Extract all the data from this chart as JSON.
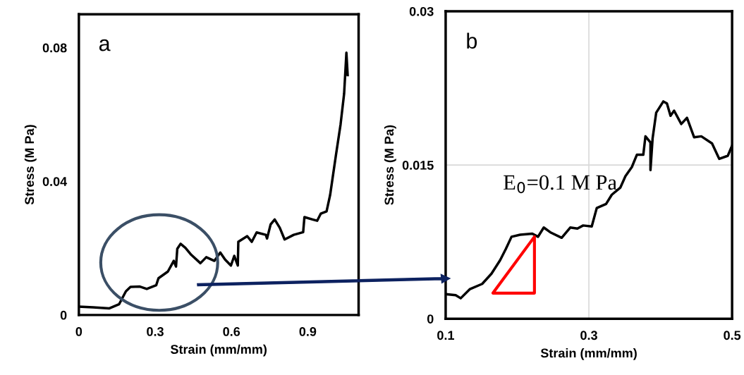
{
  "chart_data": [
    {
      "type": "line",
      "xlabel": "Strain (mm/mm)",
      "ylabel": "Stress (M Pa)",
      "annotations": [
        "a"
      ],
      "xlim": [
        0,
        1.1
      ],
      "ylim": [
        0,
        0.09
      ],
      "xticks": [
        0,
        0.3,
        0.6,
        0.9
      ],
      "yticks": [
        0,
        0.04,
        0.08
      ],
      "grid": false,
      "legend": false,
      "series": [
        {
          "color": "#000000",
          "x": [
            0,
            0.056,
            0.12,
            0.158,
            0.185,
            0.203,
            0.24,
            0.267,
            0.304,
            0.313,
            0.35,
            0.373,
            0.382,
            0.387,
            0.4,
            0.419,
            0.442,
            0.478,
            0.501,
            0.533,
            0.556,
            0.575,
            0.598,
            0.611,
            0.625,
            0.627,
            0.662,
            0.68,
            0.699,
            0.735,
            0.74,
            0.754,
            0.77,
            0.79,
            0.809,
            0.845,
            0.882,
            0.887,
            0.919,
            0.937,
            0.951,
            0.974,
            0.988,
            1.011,
            1.029,
            1.043,
            1.052,
            1.057
          ],
          "values": [
            0.0025,
            0.0023,
            0.002,
            0.0032,
            0.0071,
            0.0084,
            0.0085,
            0.0078,
            0.0089,
            0.011,
            0.013,
            0.0162,
            0.0145,
            0.0198,
            0.0213,
            0.0201,
            0.018,
            0.0155,
            0.0173,
            0.0162,
            0.0187,
            0.0166,
            0.0148,
            0.0177,
            0.0148,
            0.0219,
            0.0236,
            0.0219,
            0.0247,
            0.024,
            0.0229,
            0.0271,
            0.0286,
            0.0261,
            0.0226,
            0.024,
            0.0248,
            0.0293,
            0.0286,
            0.0282,
            0.0303,
            0.031,
            0.0359,
            0.0479,
            0.057,
            0.0662,
            0.0785,
            0.0718
          ]
        }
      ]
    },
    {
      "type": "line",
      "xlabel": "Strain (mm/mm)",
      "ylabel": "Stress (M Pa)",
      "annotations": [
        "b",
        "E$_{0}$=0.1 M Pa"
      ],
      "xlim": [
        0.1,
        0.5
      ],
      "ylim": [
        0,
        0.03
      ],
      "xticks": [
        0.1,
        0.3,
        0.5
      ],
      "yticks": [
        0,
        0.015,
        0.03
      ],
      "grid": true,
      "legend": false,
      "series": [
        {
          "color": "#000000",
          "x": [
            0.1,
            0.114,
            0.121,
            0.134,
            0.151,
            0.164,
            0.176,
            0.184,
            0.192,
            0.204,
            0.221,
            0.229,
            0.237,
            0.247,
            0.262,
            0.274,
            0.284,
            0.292,
            0.304,
            0.311,
            0.324,
            0.332,
            0.344,
            0.351,
            0.36,
            0.367,
            0.376,
            0.379,
            0.386,
            0.386,
            0.389,
            0.394,
            0.404,
            0.409,
            0.414,
            0.419,
            0.429,
            0.437,
            0.447,
            0.457,
            0.472,
            0.482,
            0.494,
            0.5
          ],
          "values": [
            0.0024,
            0.0023,
            0.002,
            0.0029,
            0.0034,
            0.0044,
            0.0057,
            0.0068,
            0.008,
            0.0082,
            0.0083,
            0.008,
            0.0089,
            0.0084,
            0.0079,
            0.0089,
            0.0088,
            0.0091,
            0.009,
            0.0108,
            0.0112,
            0.0121,
            0.0128,
            0.0139,
            0.0148,
            0.016,
            0.016,
            0.0178,
            0.0172,
            0.0145,
            0.0176,
            0.0201,
            0.0212,
            0.021,
            0.0198,
            0.0203,
            0.019,
            0.0196,
            0.0177,
            0.0178,
            0.0171,
            0.0156,
            0.0159,
            0.0169
          ]
        }
      ]
    }
  ]
}
